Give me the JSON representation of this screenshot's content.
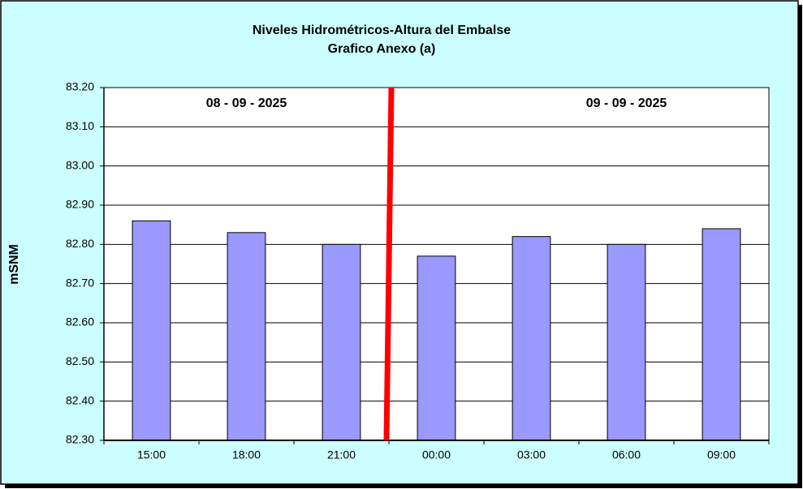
{
  "chart_data": {
    "type": "bar",
    "title": "Niveles Hidrométricos-Altura del Embalse",
    "subtitle": "Grafico Anexo (a)",
    "y_label": "mSNM",
    "annotations": [
      "08 - 09 - 2025",
      "09 - 09 - 2025"
    ],
    "categories": [
      "15:00",
      "18:00",
      "21:00",
      "00:00",
      "03:00",
      "06:00",
      "09:00"
    ],
    "values": [
      82.86,
      82.83,
      82.8,
      82.77,
      82.82,
      82.8,
      82.84
    ],
    "color": "#9999ff",
    "ylim": [
      82.3,
      83.2
    ],
    "yticks": [
      {
        "value": 82.3,
        "label": "82.30"
      },
      {
        "value": 82.4,
        "label": "82.40"
      },
      {
        "value": 82.5,
        "label": "82.50"
      },
      {
        "value": 82.6,
        "label": "82.60"
      },
      {
        "value": 82.7,
        "label": "82.70"
      },
      {
        "value": 82.8,
        "label": "82.80"
      },
      {
        "value": 82.9,
        "label": "82.90"
      },
      {
        "value": 83.0,
        "label": "83.00"
      },
      {
        "value": 83.1,
        "label": "83.10"
      },
      {
        "value": 83.2,
        "label": "83.20"
      }
    ],
    "grid": true
  }
}
